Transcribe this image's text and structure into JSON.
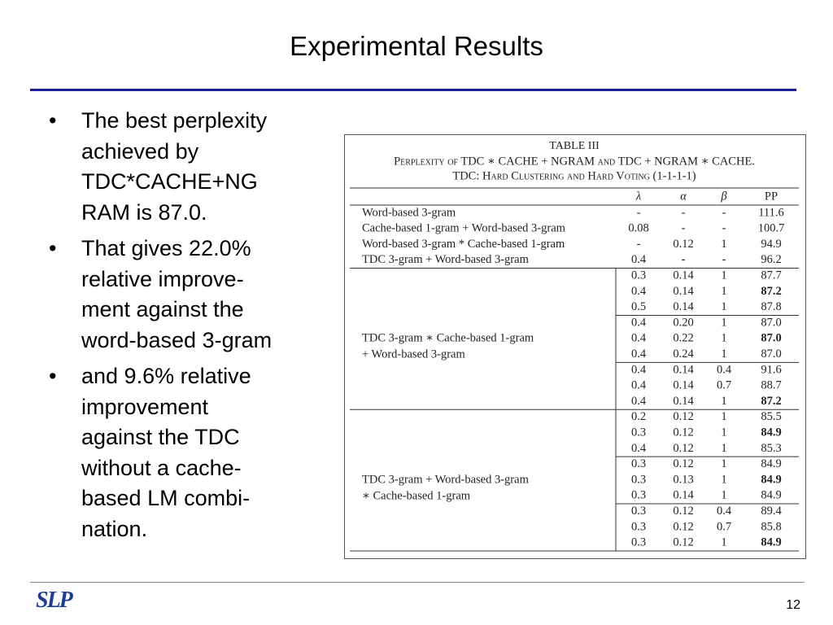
{
  "title": "Experimental Results",
  "bullets": [
    [
      "The best perplexity",
      "achieved by",
      "TDC*CACHE+NG",
      "RAM is 87.0."
    ],
    [
      "That gives 22.0%",
      "relative improve-",
      "ment against the",
      "word-based 3-gram"
    ],
    [
      "and 9.6% relative",
      "improvement",
      "against the TDC",
      "without a cache-",
      "based LM combi-",
      "nation."
    ]
  ],
  "table": {
    "caption": [
      "TABLE III",
      "Perplexity of TDC ∗ CACHE + NGRAM and TDC + NGRAM ∗ CACHE.",
      "TDC: Hard Clustering and Hard Voting (1-1-1-1)"
    ],
    "header": [
      "λ",
      "α",
      "β",
      "PP"
    ],
    "simple_rows": [
      [
        "Word-based 3-gram",
        "-",
        "-",
        "-",
        "111.6"
      ],
      [
        "Cache-based 1-gram + Word-based 3-gram",
        "0.08",
        "-",
        "-",
        "100.7"
      ],
      [
        "Word-based 3-gram * Cache-based 1-gram",
        "-",
        "0.12",
        "1",
        "94.9"
      ],
      [
        "TDC 3-gram + Word-based 3-gram",
        "0.4",
        "-",
        "-",
        "96.2"
      ]
    ],
    "groups": [
      {
        "label": [
          "TDC 3-gram ∗ Cache-based 1-gram",
          "+ Word-based 3-gram"
        ],
        "rows": [
          [
            "0.3",
            "0.14",
            "1",
            "87.7"
          ],
          [
            "0.4",
            "0.14",
            "1",
            "87.2"
          ],
          [
            "0.5",
            "0.14",
            "1",
            "87.8"
          ],
          [
            "0.4",
            "0.20",
            "1",
            "87.0"
          ],
          [
            "0.4",
            "0.22",
            "1",
            "87.0"
          ],
          [
            "0.4",
            "0.24",
            "1",
            "87.0"
          ],
          [
            "0.4",
            "0.14",
            "0.4",
            "91.6"
          ],
          [
            "0.4",
            "0.14",
            "0.7",
            "88.7"
          ],
          [
            "0.4",
            "0.14",
            "1",
            "87.2"
          ]
        ],
        "bold": [
          1,
          4,
          8
        ]
      },
      {
        "label": [
          "TDC 3-gram + Word-based 3-gram",
          "∗ Cache-based 1-gram"
        ],
        "rows": [
          [
            "0.2",
            "0.12",
            "1",
            "85.5"
          ],
          [
            "0.3",
            "0.12",
            "1",
            "84.9"
          ],
          [
            "0.4",
            "0.12",
            "1",
            "85.3"
          ],
          [
            "0.3",
            "0.12",
            "1",
            "84.9"
          ],
          [
            "0.3",
            "0.13",
            "1",
            "84.9"
          ],
          [
            "0.3",
            "0.14",
            "1",
            "84.9"
          ],
          [
            "0.3",
            "0.12",
            "0.4",
            "89.4"
          ],
          [
            "0.3",
            "0.12",
            "0.7",
            "85.8"
          ],
          [
            "0.3",
            "0.12",
            "1",
            "84.9"
          ]
        ],
        "bold": [
          1,
          4,
          8
        ]
      }
    ]
  },
  "logo": "SLP",
  "page_number": "12"
}
